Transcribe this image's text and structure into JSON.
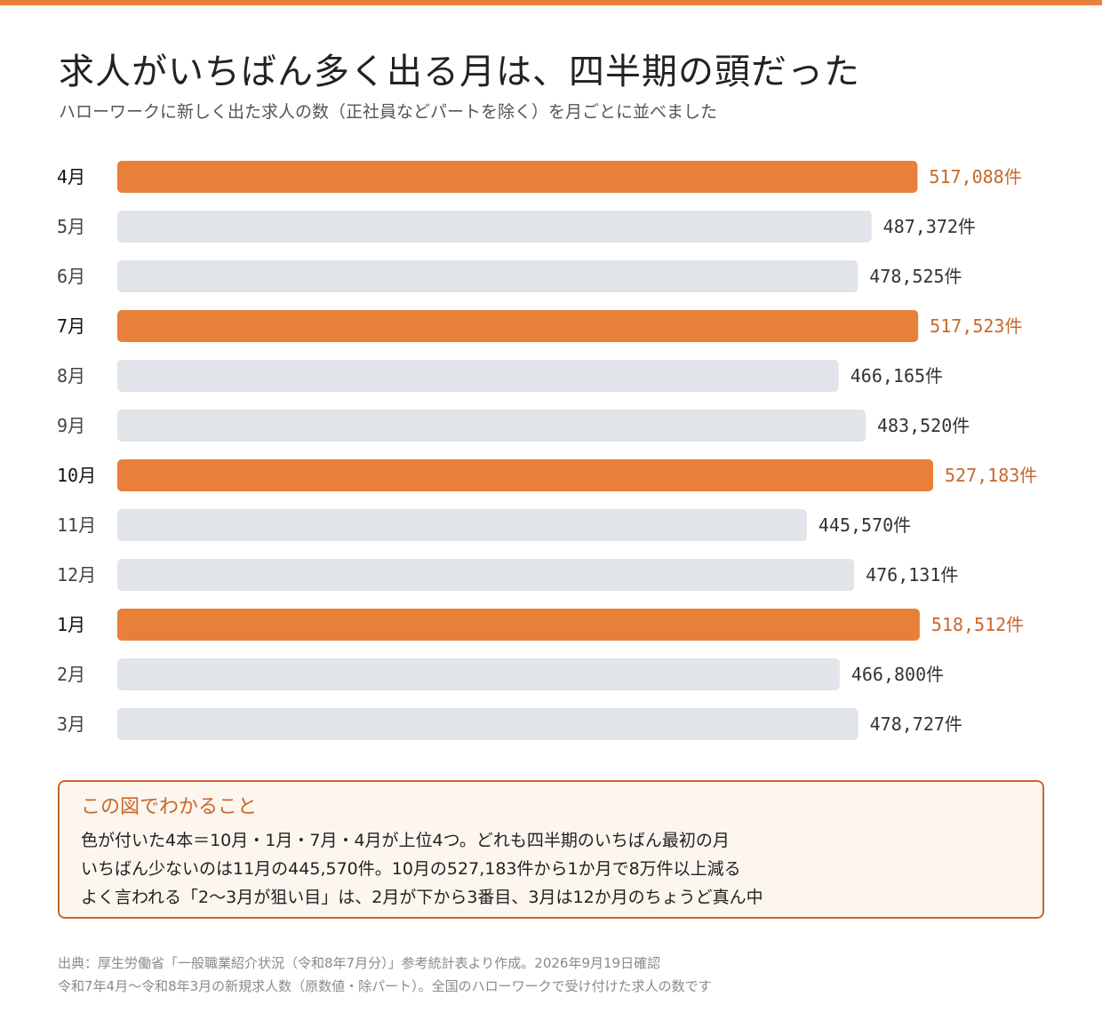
{
  "header": {
    "title": "求人がいちばん多く出る月は、四半期の頭だった",
    "subtitle": "ハローワークに新しく出た求人の数（正社員などパートを除く）を月ごとに並べました"
  },
  "colors": {
    "accent": "#e8803a",
    "accent_text": "#c8682a",
    "muted_bar": "#e1e4e8",
    "label_text": "#333333"
  },
  "chart_data": {
    "type": "bar",
    "orientation": "horizontal",
    "unit": "件",
    "categories": [
      "4月",
      "5月",
      "6月",
      "7月",
      "8月",
      "9月",
      "10月",
      "11月",
      "12月",
      "1月",
      "2月",
      "3月"
    ],
    "values": [
      517088,
      487372,
      478525,
      517523,
      466165,
      483520,
      527183,
      445570,
      476131,
      518512,
      466800,
      478727
    ],
    "value_labels": [
      "517,088件",
      "487,372件",
      "478,525件",
      "517,523件",
      "466,165件",
      "483,520件",
      "527,183件",
      "445,570件",
      "476,131件",
      "518,512件",
      "466,800件",
      "478,727件"
    ],
    "highlighted": [
      "4月",
      "7月",
      "10月",
      "1月"
    ],
    "xlim": [
      0,
      527183
    ],
    "grid": false,
    "legend": "none"
  },
  "callout": {
    "heading": "この図でわかること",
    "lines": [
      "色が付いた4本＝10月・1月・7月・4月が上位4つ。どれも四半期のいちばん最初の月",
      "いちばん少ないのは11月の445,570件。10月の527,183件から1か月で8万件以上減る",
      "よく言われる「2〜3月が狙い目」は、2月が下から3番目、3月は12か月のちょうど真ん中"
    ]
  },
  "source": {
    "line1": "出典：厚生労働省「一般職業紹介状況（令和8年7月分）」参考統計表より作成。2026年9月19日確認",
    "line2": "令和7年4月〜令和8年3月の新規求人数（原数値・除パート）。全国のハローワークで受け付けた求人の数です"
  }
}
